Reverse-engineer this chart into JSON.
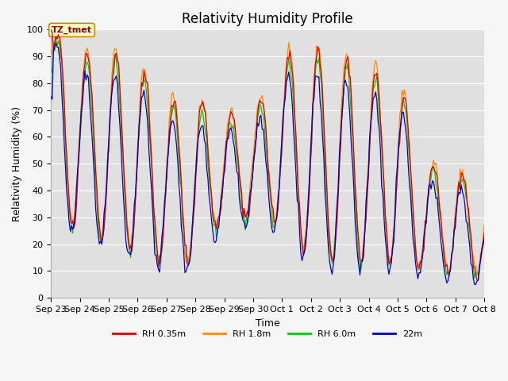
{
  "title": "Relativity Humidity Profile",
  "xlabel": "Time",
  "ylabel": "Relativity Humidity (%)",
  "ylim": [
    0,
    100
  ],
  "yticks": [
    0,
    10,
    20,
    30,
    40,
    50,
    60,
    70,
    80,
    90,
    100
  ],
  "xtick_labels": [
    "Sep 23",
    "Sep 24",
    "Sep 25",
    "Sep 26",
    "Sep 27",
    "Sep 28",
    "Sep 29",
    "Sep 30",
    "Oct 1",
    "Oct 2",
    "Oct 3",
    "Oct 4",
    "Oct 5",
    "Oct 6",
    "Oct 7",
    "Oct 8"
  ],
  "colors": {
    "rh035": "#dd0000",
    "rh18": "#ff8800",
    "rh60": "#00cc00",
    "rh22": "#0000cc"
  },
  "legend_labels": [
    "RH 0.35m",
    "RH 1.8m",
    "RH 6.0m",
    "22m"
  ],
  "annotation": "TZ_tmet",
  "bg_color": "#e0e0e0",
  "grid_color": "#ffffff",
  "title_fontsize": 12,
  "axis_fontsize": 9,
  "tick_fontsize": 8
}
